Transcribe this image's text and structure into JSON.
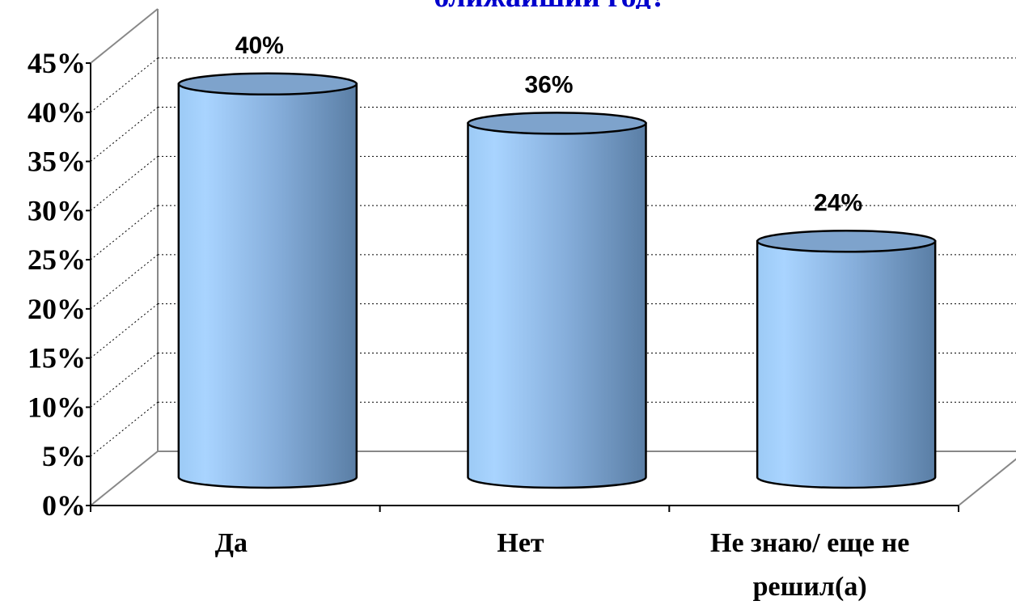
{
  "chart_data": {
    "type": "bar",
    "title": "ближайший год?",
    "categories": [
      "Да",
      "Нет",
      "Не знаю/ еще не решил(а)"
    ],
    "values": [
      40,
      36,
      24
    ],
    "value_labels": [
      "40%",
      "36%",
      "24%"
    ],
    "color": "#8cb8e8",
    "ylim": [
      0,
      45
    ],
    "yticks": [
      {
        "value": 0,
        "label": "0%"
      },
      {
        "value": 5,
        "label": "5%"
      },
      {
        "value": 10,
        "label": "10%"
      },
      {
        "value": 15,
        "label": "15%"
      },
      {
        "value": 20,
        "label": "20%"
      },
      {
        "value": 25,
        "label": "25%"
      },
      {
        "value": 30,
        "label": "30%"
      },
      {
        "value": 35,
        "label": "35%"
      },
      {
        "value": 40,
        "label": "40%"
      },
      {
        "value": 45,
        "label": "45%"
      }
    ],
    "grid": true
  }
}
